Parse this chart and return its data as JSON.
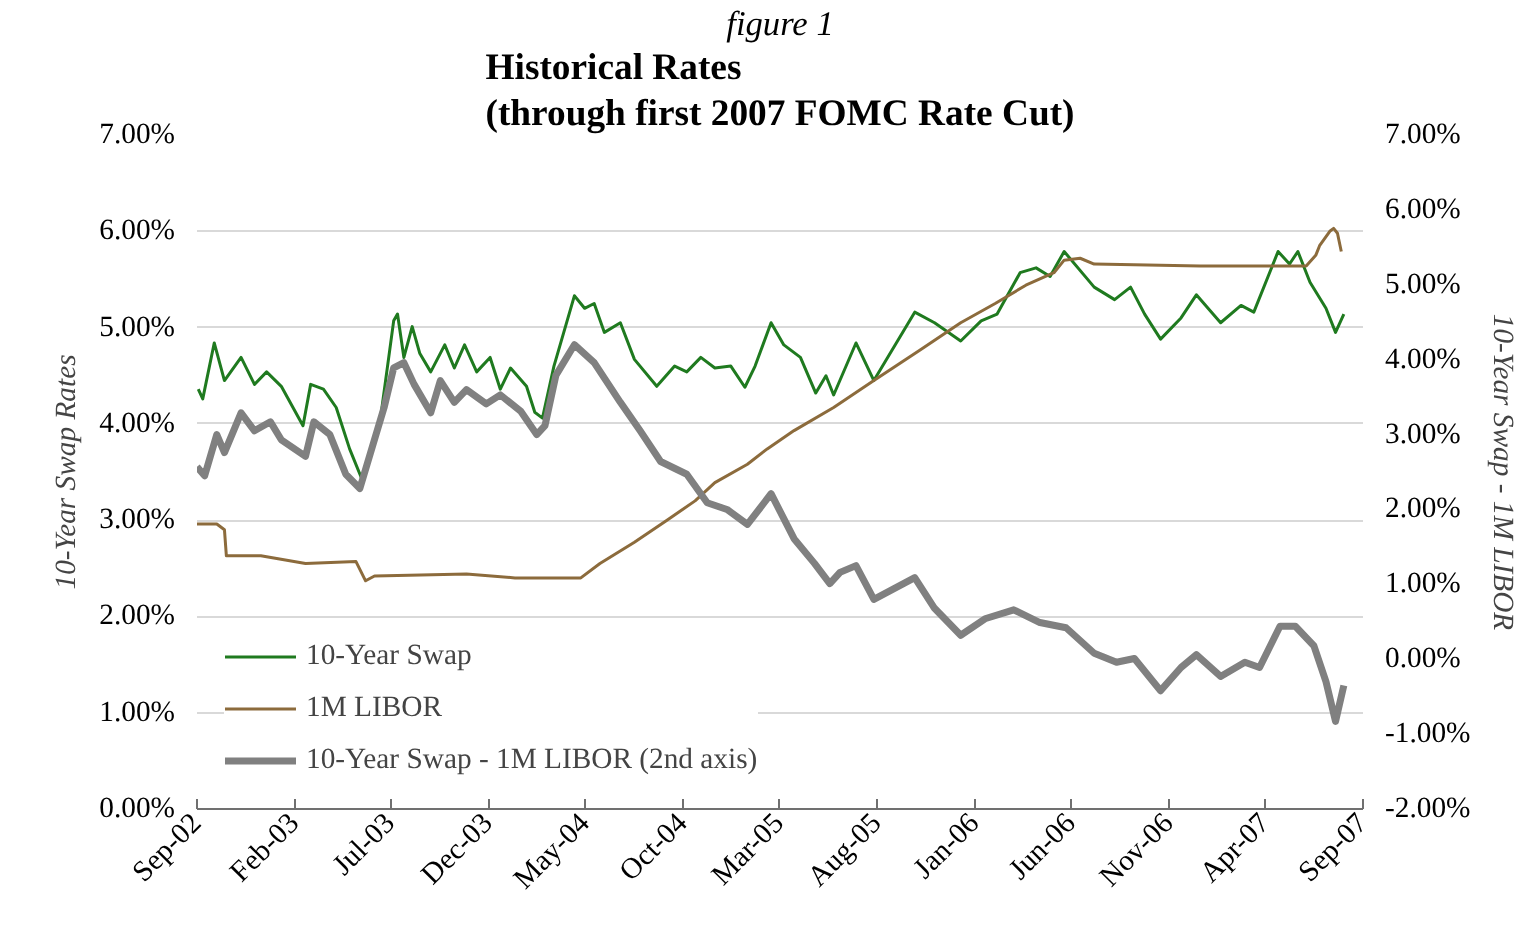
{
  "chart_data": {
    "type": "line",
    "title": "Historical Rates\n(through first 2007 FOMC Rate Cut)",
    "subtitle": "figure 1",
    "ylabel": "10-Year Swap Rates",
    "y2label": "10-Year Swap - 1M LIBOR",
    "xlim": [
      "2002-09-01",
      "2007-09-01"
    ],
    "xticks": [
      {
        "value": "2002-09-01",
        "label": "Sep-02"
      },
      {
        "value": "2003-02-01",
        "label": "Feb-03"
      },
      {
        "value": "2003-07-01",
        "label": "Jul-03"
      },
      {
        "value": "2003-12-01",
        "label": "Dec-03"
      },
      {
        "value": "2004-05-01",
        "label": "May-04"
      },
      {
        "value": "2004-10-01",
        "label": "Oct-04"
      },
      {
        "value": "2005-03-01",
        "label": "Mar-05"
      },
      {
        "value": "2005-08-01",
        "label": "Aug-05"
      },
      {
        "value": "2006-01-01",
        "label": "Jan-06"
      },
      {
        "value": "2006-06-01",
        "label": "Jun-06"
      },
      {
        "value": "2006-11-01",
        "label": "Nov-06"
      },
      {
        "value": "2007-04-01",
        "label": "Apr-07"
      },
      {
        "value": "2007-09-01",
        "label": "Sep-07"
      }
    ],
    "ylim": [
      0,
      7
    ],
    "yticks": [
      {
        "value": 0,
        "label": "0.00%"
      },
      {
        "value": 1,
        "label": "1.00%"
      },
      {
        "value": 2,
        "label": "2.00%"
      },
      {
        "value": 3,
        "label": "3.00%"
      },
      {
        "value": 4,
        "label": "4.00%"
      },
      {
        "value": 5,
        "label": "5.00%"
      },
      {
        "value": 6,
        "label": "6.00%"
      },
      {
        "value": 7,
        "label": "7.00%"
      }
    ],
    "y2lim": [
      -2,
      7
    ],
    "y2ticks": [
      {
        "value": -2,
        "label": "-2.00%"
      },
      {
        "value": -1,
        "label": "-1.00%"
      },
      {
        "value": 0,
        "label": "0.00%"
      },
      {
        "value": 1,
        "label": "1.00%"
      },
      {
        "value": 2,
        "label": "2.00%"
      },
      {
        "value": 3,
        "label": "3.00%"
      },
      {
        "value": 4,
        "label": "4.00%"
      },
      {
        "value": 5,
        "label": "5.00%"
      },
      {
        "value": 6,
        "label": "6.00%"
      },
      {
        "value": 7,
        "label": "7.00%"
      }
    ],
    "grid": "y",
    "legend": "bottom left",
    "series": [
      {
        "name": "10-Year Swap",
        "color": "#1f7a1f",
        "x": [
          "2002-09-03",
          "2002-09-10",
          "2002-09-28",
          "2002-10-14",
          "2002-11-09",
          "2002-11-30",
          "2002-12-19",
          "2003-01-11",
          "2003-02-14",
          "2003-02-26",
          "2003-03-18",
          "2003-04-07",
          "2003-04-28",
          "2003-05-17",
          "2003-06-15",
          "2003-07-06",
          "2003-07-12",
          "2003-07-22",
          "2003-08-04",
          "2003-08-16",
          "2003-09-02",
          "2003-09-24",
          "2003-10-09",
          "2003-10-25",
          "2003-11-13",
          "2003-12-04",
          "2003-12-20",
          "2004-01-05",
          "2004-01-30",
          "2004-02-12",
          "2004-02-24",
          "2004-03-13",
          "2004-04-14",
          "2004-04-30",
          "2004-05-15",
          "2004-05-31",
          "2004-06-25",
          "2004-07-17",
          "2004-08-21",
          "2004-09-18",
          "2004-10-07",
          "2004-10-29",
          "2004-11-20",
          "2004-12-15",
          "2005-01-06",
          "2005-01-22",
          "2005-02-16",
          "2005-03-08",
          "2005-04-03",
          "2005-04-27",
          "2005-05-13",
          "2005-05-25",
          "2005-06-29",
          "2005-07-27",
          "2005-09-29",
          "2005-10-30",
          "2005-12-10",
          "2006-01-11",
          "2006-02-05",
          "2006-03-13",
          "2006-04-07",
          "2006-04-29",
          "2006-05-21",
          "2006-07-07",
          "2006-08-08",
          "2006-09-02",
          "2006-09-24",
          "2006-10-19",
          "2006-11-20",
          "2006-12-14",
          "2007-01-21",
          "2007-02-22",
          "2007-03-14",
          "2007-04-21",
          "2007-05-09",
          "2007-05-22",
          "2007-06-10",
          "2007-07-05",
          "2007-07-20",
          "2007-08-02"
        ],
        "values": [
          4.36,
          4.26,
          4.84,
          4.45,
          4.69,
          4.41,
          4.54,
          4.39,
          3.98,
          4.41,
          4.36,
          4.17,
          3.74,
          3.43,
          4.04,
          5.07,
          5.14,
          4.69,
          5.01,
          4.73,
          4.54,
          4.82,
          4.58,
          4.82,
          4.54,
          4.69,
          4.36,
          4.58,
          4.39,
          4.12,
          4.06,
          4.6,
          5.33,
          5.2,
          5.25,
          4.95,
          5.05,
          4.67,
          4.39,
          4.6,
          4.54,
          4.69,
          4.58,
          4.6,
          4.38,
          4.6,
          5.05,
          4.82,
          4.69,
          4.32,
          4.5,
          4.3,
          4.84,
          4.45,
          5.16,
          5.05,
          4.86,
          5.07,
          5.14,
          5.57,
          5.62,
          5.53,
          5.79,
          5.42,
          5.29,
          5.42,
          5.14,
          4.88,
          5.1,
          5.34,
          5.05,
          5.23,
          5.16,
          5.79,
          5.66,
          5.79,
          5.47,
          5.2,
          4.95,
          5.14
        ]
      },
      {
        "name": "1M LIBOR",
        "color": "#8c6b3c",
        "x": [
          "2002-09-01",
          "2002-10-02",
          "2002-10-14",
          "2002-10-17",
          "2002-12-10",
          "2003-02-18",
          "2003-05-08",
          "2003-05-23",
          "2003-06-06",
          "2003-10-28",
          "2004-01-12",
          "2004-04-24",
          "2004-05-24",
          "2004-07-17",
          "2004-09-06",
          "2004-10-20",
          "2004-11-20",
          "2005-01-10",
          "2005-02-10",
          "2005-03-24",
          "2005-05-25",
          "2005-07-27",
          "2005-10-08",
          "2005-12-10",
          "2006-02-02",
          "2006-03-22",
          "2006-05-05",
          "2006-05-21",
          "2006-06-15",
          "2006-07-07",
          "2006-12-20",
          "2007-06-04",
          "2007-06-19",
          "2007-06-25",
          "2007-07-11",
          "2007-07-17",
          "2007-07-23",
          "2007-07-29"
        ],
        "values": [
          2.96,
          2.96,
          2.9,
          2.63,
          2.63,
          2.55,
          2.57,
          2.37,
          2.42,
          2.44,
          2.4,
          2.4,
          2.55,
          2.77,
          3.0,
          3.2,
          3.39,
          3.58,
          3.74,
          3.93,
          4.17,
          4.45,
          4.77,
          5.05,
          5.25,
          5.44,
          5.57,
          5.7,
          5.72,
          5.66,
          5.64,
          5.64,
          5.75,
          5.85,
          6.0,
          6.03,
          5.98,
          5.79
        ]
      },
      {
        "name": "10-Year Swap - 1M LIBOR (2nd axis)",
        "color": "#808080",
        "axis": "y2",
        "x": [
          "2002-09-01",
          "2002-09-13",
          "2002-10-02",
          "2002-10-14",
          "2002-11-09",
          "2002-11-30",
          "2002-12-25",
          "2003-01-11",
          "2003-02-18",
          "2003-03-03",
          "2003-03-28",
          "2003-04-22",
          "2003-05-14",
          "2003-06-21",
          "2003-07-06",
          "2003-07-22",
          "2003-08-07",
          "2003-09-02",
          "2003-09-17",
          "2003-10-09",
          "2003-10-28",
          "2003-11-28",
          "2003-12-20",
          "2004-01-21",
          "2004-02-15",
          "2004-02-28",
          "2004-03-16",
          "2004-04-14",
          "2004-05-15",
          "2004-06-25",
          "2004-07-26",
          "2004-08-27",
          "2004-10-07",
          "2004-11-08",
          "2004-12-09",
          "2005-01-10",
          "2005-02-16",
          "2005-03-24",
          "2005-04-25",
          "2005-05-19",
          "2005-06-04",
          "2005-06-29",
          "2005-07-27",
          "2005-09-29",
          "2005-10-30",
          "2005-12-10",
          "2006-01-17",
          "2006-03-03",
          "2006-04-13",
          "2006-05-24",
          "2006-07-07",
          "2006-08-11",
          "2006-09-08",
          "2006-10-19",
          "2006-11-20",
          "2006-12-14",
          "2007-01-21",
          "2007-02-28",
          "2007-03-23",
          "2007-04-24",
          "2007-05-18",
          "2007-06-16",
          "2007-07-05",
          "2007-07-20",
          "2007-08-02"
        ],
        "values": [
          2.57,
          2.45,
          3.0,
          2.76,
          3.29,
          3.05,
          3.17,
          2.93,
          2.71,
          3.17,
          3.0,
          2.47,
          2.28,
          3.36,
          3.89,
          3.96,
          3.67,
          3.29,
          3.72,
          3.43,
          3.6,
          3.41,
          3.53,
          3.31,
          3.0,
          3.12,
          3.79,
          4.2,
          3.96,
          3.43,
          3.05,
          2.64,
          2.47,
          2.09,
          2.0,
          1.8,
          2.21,
          1.61,
          1.28,
          1.01,
          1.16,
          1.25,
          0.8,
          1.09,
          0.68,
          0.32,
          0.54,
          0.66,
          0.49,
          0.42,
          0.08,
          -0.04,
          0.01,
          -0.42,
          -0.11,
          0.06,
          -0.23,
          -0.04,
          -0.11,
          0.44,
          0.44,
          0.18,
          -0.3,
          -0.83,
          -0.35
        ]
      }
    ]
  }
}
